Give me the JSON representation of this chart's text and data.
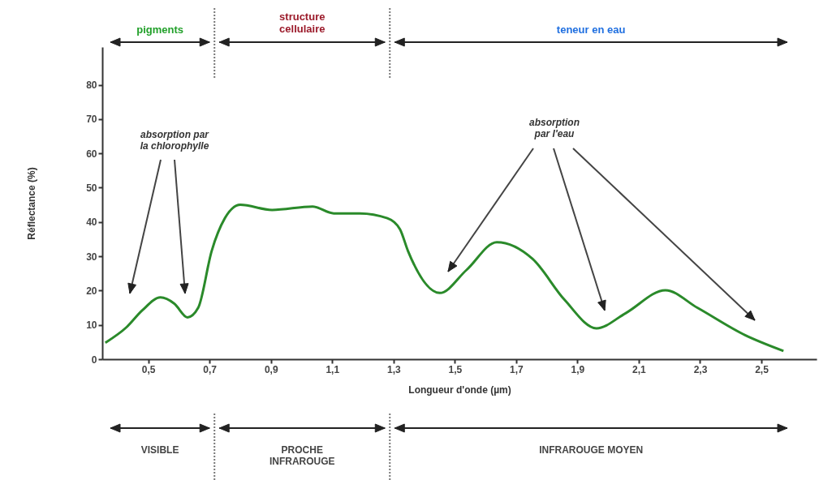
{
  "chart_data": {
    "type": "line",
    "xlabel": "Longueur d'onde (µm)",
    "ylabel": "Réflectance (%)",
    "xlim": [
      0.35,
      2.68
    ],
    "ylim": [
      0,
      91
    ],
    "xticks": [
      {
        "value": 0.5,
        "label": "0,5"
      },
      {
        "value": 0.7,
        "label": "0,7"
      },
      {
        "value": 0.9,
        "label": "0,9"
      },
      {
        "value": 1.1,
        "label": "1,1"
      },
      {
        "value": 1.3,
        "label": "1,3"
      },
      {
        "value": 1.5,
        "label": "1,5"
      },
      {
        "value": 1.7,
        "label": "1,7"
      },
      {
        "value": 1.9,
        "label": "1,9"
      },
      {
        "value": 2.1,
        "label": "2,1"
      },
      {
        "value": 2.3,
        "label": "2,3"
      },
      {
        "value": 2.5,
        "label": "2,5"
      }
    ],
    "yticks": [
      0,
      10,
      20,
      30,
      40,
      50,
      60,
      70,
      80
    ],
    "grid": false,
    "marker": "none",
    "line_style": "solid",
    "series": [
      {
        "color": "#2a8a2a",
        "x": [
          0.36,
          0.43,
          0.48,
          0.54,
          0.585,
          0.628,
          0.663,
          0.707,
          0.75,
          0.8,
          0.904,
          1.036,
          1.105,
          1.19,
          1.28,
          1.321,
          1.347,
          1.451,
          1.538,
          1.637,
          1.754,
          1.858,
          1.962,
          2.057,
          2.187,
          2.291,
          2.447,
          2.572
        ],
        "values": [
          4.8,
          9.4,
          14.2,
          18.0,
          16.2,
          12.2,
          15,
          31.6,
          41.1,
          45.0,
          43.5,
          44.5,
          42.5,
          42.5,
          41.1,
          37.9,
          31.6,
          19.3,
          26.0,
          34.1,
          29.2,
          17.3,
          9.0,
          13.4,
          20.1,
          15.0,
          7.0,
          2.4
        ]
      }
    ],
    "ref_lines": [
      {
        "axis": "x",
        "value": 0.716,
        "label": null,
        "line_style": "dotted",
        "color": "#777777"
      },
      {
        "axis": "x",
        "value": 1.288,
        "label": null,
        "line_style": "dotted",
        "color": "#777777"
      }
    ],
    "annotations": [
      "absorption par\nla chlorophylle",
      "absorption\npar l'eau",
      "pigments",
      "structure\ncellulaire",
      "teneur en eau",
      "VISIBLE",
      "PROCHE\nINFRAROUGE",
      "INFRAROUGE MOYEN"
    ]
  }
}
